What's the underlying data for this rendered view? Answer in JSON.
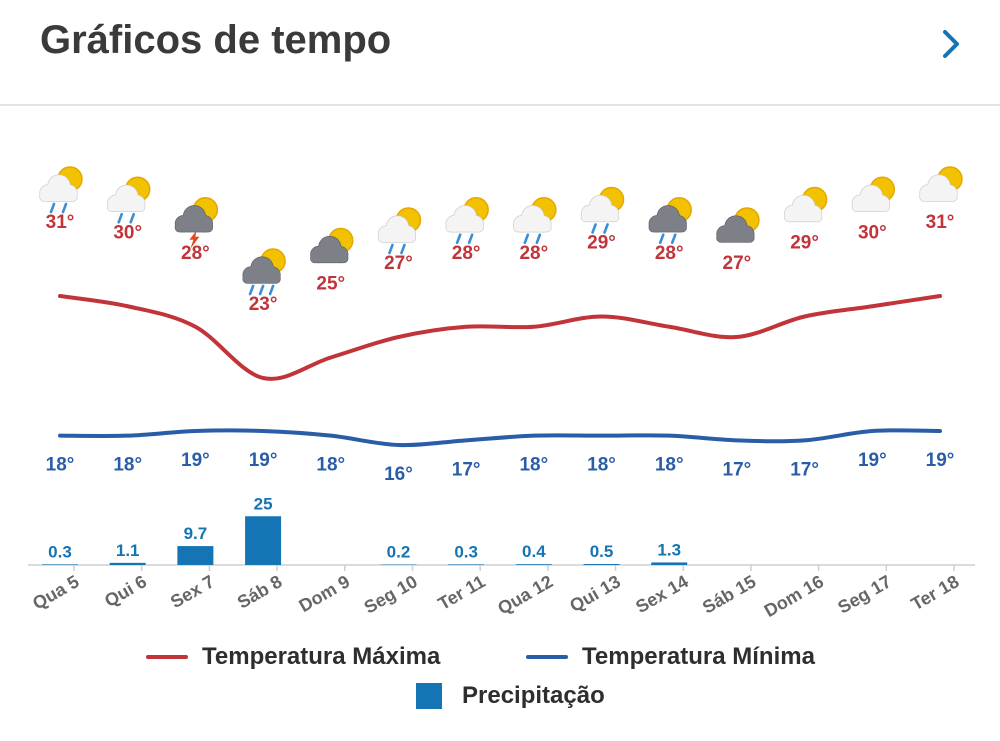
{
  "header": {
    "title": "Gráficos de tempo",
    "next_icon": "chevron-right-icon"
  },
  "colors": {
    "max": "#c0343a",
    "min": "#2a5da8",
    "precip": "#1574b3",
    "text": "#3a3a3a",
    "axis_text": "#666666"
  },
  "chart_data": {
    "type": "line",
    "categories": [
      "Qua 5",
      "Qui 6",
      "Sex 7",
      "Sáb 8",
      "Dom 9",
      "Seg 10",
      "Ter 11",
      "Qua 12",
      "Qui 13",
      "Sex 14",
      "Sáb 15",
      "Dom 16",
      "Seg 17",
      "Ter 18"
    ],
    "weather_icons": [
      "sun-cloud-rain-icon",
      "sun-cloud-rain-icon",
      "sun-thunder-cloud-icon",
      "sun-cloud-heavy-rain-icon",
      "sun-dark-cloud-icon",
      "sun-cloud-rain-icon",
      "sun-cloud-rain-icon",
      "sun-cloud-rain-icon",
      "sun-cloud-rain-icon",
      "sun-dark-cloud-rain-icon",
      "sun-dark-cloud-icon",
      "sun-cloud-icon",
      "sun-cloud-icon",
      "sun-cloud-icon"
    ],
    "series": [
      {
        "name": "Temperatura Máxima",
        "type": "line",
        "values": [
          31,
          30,
          28,
          23,
          25,
          27,
          28,
          28,
          29,
          28,
          27,
          29,
          30,
          31
        ],
        "labels": [
          "31°",
          "30°",
          "28°",
          "23°",
          "25°",
          "27°",
          "28°",
          "28°",
          "29°",
          "28°",
          "27°",
          "29°",
          "30°",
          "31°"
        ]
      },
      {
        "name": "Temperatura Mínima",
        "type": "line",
        "values": [
          18,
          18,
          19,
          19,
          18,
          16,
          17,
          18,
          18,
          18,
          17,
          17,
          19,
          19
        ],
        "labels": [
          "18°",
          "18°",
          "19°",
          "19°",
          "18°",
          "16°",
          "17°",
          "18°",
          "18°",
          "18°",
          "17°",
          "17°",
          "19°",
          "19°"
        ]
      },
      {
        "name": "Precipitação",
        "type": "bar",
        "values": [
          0.3,
          1.1,
          9.7,
          25,
          0,
          0.2,
          0.3,
          0.4,
          0.5,
          1.3,
          0,
          0,
          0,
          0
        ],
        "labels": [
          "0.3",
          "1.1",
          "9.7",
          "25",
          "",
          "0.2",
          "0.3",
          "0.4",
          "0.5",
          "1.3",
          "",
          "",
          "",
          ""
        ]
      }
    ],
    "legend": [
      {
        "label": "Temperatura Máxima",
        "marker": "line"
      },
      {
        "label": "Temperatura Mínima",
        "marker": "line"
      },
      {
        "label": "Precipitação",
        "marker": "box"
      }
    ],
    "legend_position": "bottom",
    "grid": false
  }
}
